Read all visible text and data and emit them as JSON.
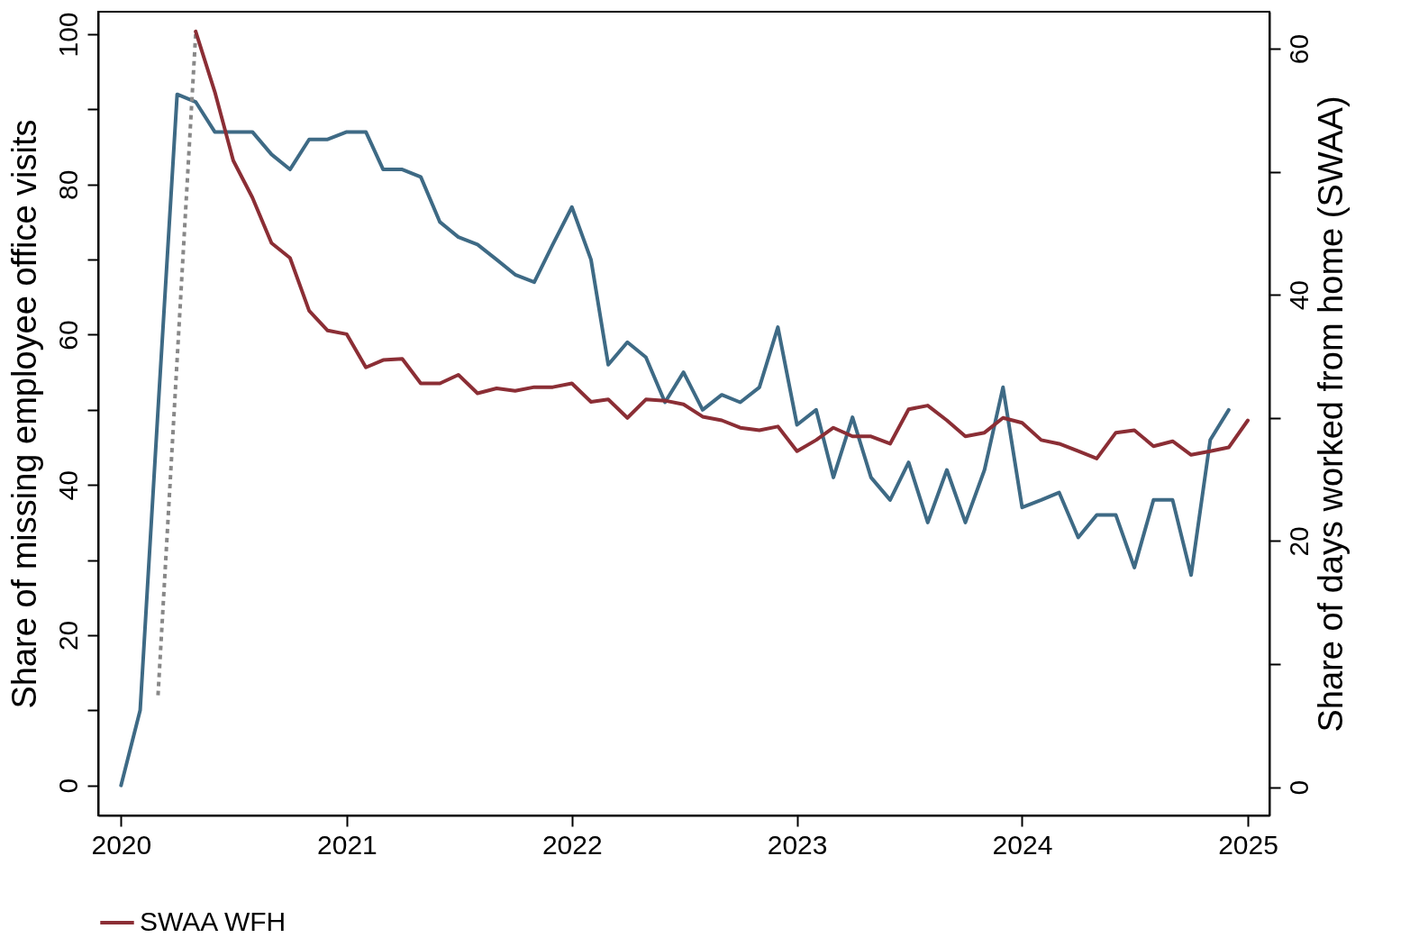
{
  "chart_data": {
    "type": "line",
    "ylabel": "Share of missing employee office visits",
    "y2label": "Share of days worked from home (SWAA)",
    "xlim": [
      "2019-11-25",
      "2025-02-05"
    ],
    "xticks": [
      {
        "value": "2020",
        "label": "2020"
      },
      {
        "value": "2021",
        "label": "2021"
      },
      {
        "value": "2022",
        "label": "2022"
      },
      {
        "value": "2023",
        "label": "2023"
      },
      {
        "value": "2024",
        "label": "2024"
      },
      {
        "value": "2025",
        "label": "2025"
      }
    ],
    "ylim": [
      -4,
      103
    ],
    "yticks": [
      0,
      {
        "value": 10,
        "label": null
      },
      20,
      {
        "value": 30,
        "label": null
      },
      40,
      {
        "value": 50,
        "label": null
      },
      60,
      {
        "value": 70,
        "label": null
      },
      80,
      {
        "value": 90,
        "label": null
      },
      100
    ],
    "y2lim": [
      -2.3,
      63
    ],
    "y2ticks": [
      0,
      {
        "value": 10,
        "label": null
      },
      20,
      {
        "value": 30,
        "label": null
      },
      40,
      {
        "value": 50,
        "label": null
      },
      60
    ],
    "legend": "bottom",
    "grid": false,
    "series": [
      {
        "color": "#3e6a85",
        "x": [
          "2020-01",
          "2020-02",
          "2020-03",
          "2020-04",
          "2020-05",
          "2020-06",
          "2020-07",
          "2020-08",
          "2020-09",
          "2020-10",
          "2020-11",
          "2020-12",
          "2021-01",
          "2021-02",
          "2021-03",
          "2021-04",
          "2021-05",
          "2021-06",
          "2021-07",
          "2021-08",
          "2021-09",
          "2021-10",
          "2021-11",
          "2021-12",
          "2022-01",
          "2022-02",
          "2022-03",
          "2022-04",
          "2022-05",
          "2022-06",
          "2022-07",
          "2022-08",
          "2022-09",
          "2022-10",
          "2022-11",
          "2022-12",
          "2023-01",
          "2023-02",
          "2023-03",
          "2023-04",
          "2023-05",
          "2023-06",
          "2023-07",
          "2023-08",
          "2023-09",
          "2023-10",
          "2023-11",
          "2023-12",
          "2024-01",
          "2024-02",
          "2024-03",
          "2024-04",
          "2024-05",
          "2024-06",
          "2024-07",
          "2024-08",
          "2024-09",
          "2024-10",
          "2024-11",
          "2024-12"
        ],
        "values": [
          0,
          10,
          50,
          92,
          91,
          87,
          87,
          87,
          84,
          82,
          86,
          86,
          87,
          87,
          82,
          82,
          81,
          75,
          73,
          72,
          70,
          68,
          67,
          72,
          77,
          70,
          56,
          59,
          57,
          51,
          55,
          50,
          52,
          51,
          53,
          61,
          48,
          50,
          41,
          49,
          41,
          38,
          43,
          35,
          42,
          35,
          42,
          53,
          37,
          38,
          39,
          33,
          36,
          36,
          29,
          38,
          38,
          28,
          46,
          50
        ]
      },
      {
        "color": "#888888",
        "line_style": "dotted",
        "x": [
          "2020-03",
          "2020-05"
        ],
        "values": [
          12,
          100
        ]
      },
      {
        "name": "SWAA WFH",
        "color": "#8b2e35",
        "axis": "y2",
        "x": [
          "2020-05",
          "2020-06",
          "2020-07",
          "2020-08",
          "2020-09",
          "2020-10",
          "2020-11",
          "2020-12",
          "2021-01",
          "2021-02",
          "2021-03",
          "2021-04",
          "2021-05",
          "2021-06",
          "2021-07",
          "2021-08",
          "2021-09",
          "2021-10",
          "2021-11",
          "2021-12",
          "2022-01",
          "2022-02",
          "2022-03",
          "2022-04",
          "2022-05",
          "2022-06",
          "2022-07",
          "2022-08",
          "2022-09",
          "2022-10",
          "2022-11",
          "2022-12",
          "2023-01",
          "2023-02",
          "2023-03",
          "2023-04",
          "2023-05",
          "2023-06",
          "2023-07",
          "2023-08",
          "2023-09",
          "2023-10",
          "2023-11",
          "2023-12",
          "2024-01",
          "2024-02",
          "2024-03",
          "2024-04",
          "2024-05",
          "2024-06",
          "2024-07",
          "2024-08",
          "2024-09",
          "2024-10",
          "2024-11",
          "2024-12",
          "2025-01"
        ],
        "values": [
          61.4,
          56.5,
          50.9,
          47.9,
          44.2,
          43.0,
          38.7,
          37.1,
          36.8,
          34.1,
          34.7,
          34.8,
          32.8,
          32.8,
          33.5,
          32.0,
          32.4,
          32.2,
          32.5,
          32.5,
          32.8,
          31.3,
          31.5,
          30.0,
          31.5,
          31.4,
          31.1,
          30.1,
          29.8,
          29.2,
          29.0,
          29.3,
          27.3,
          28.2,
          29.2,
          28.5,
          28.5,
          27.9,
          30.7,
          31.0,
          29.8,
          28.5,
          28.8,
          30.0,
          29.6,
          28.2,
          27.9,
          27.3,
          26.7,
          28.8,
          29.0,
          27.7,
          28.1,
          27.0,
          27.3,
          27.6,
          29.8
        ]
      }
    ]
  }
}
